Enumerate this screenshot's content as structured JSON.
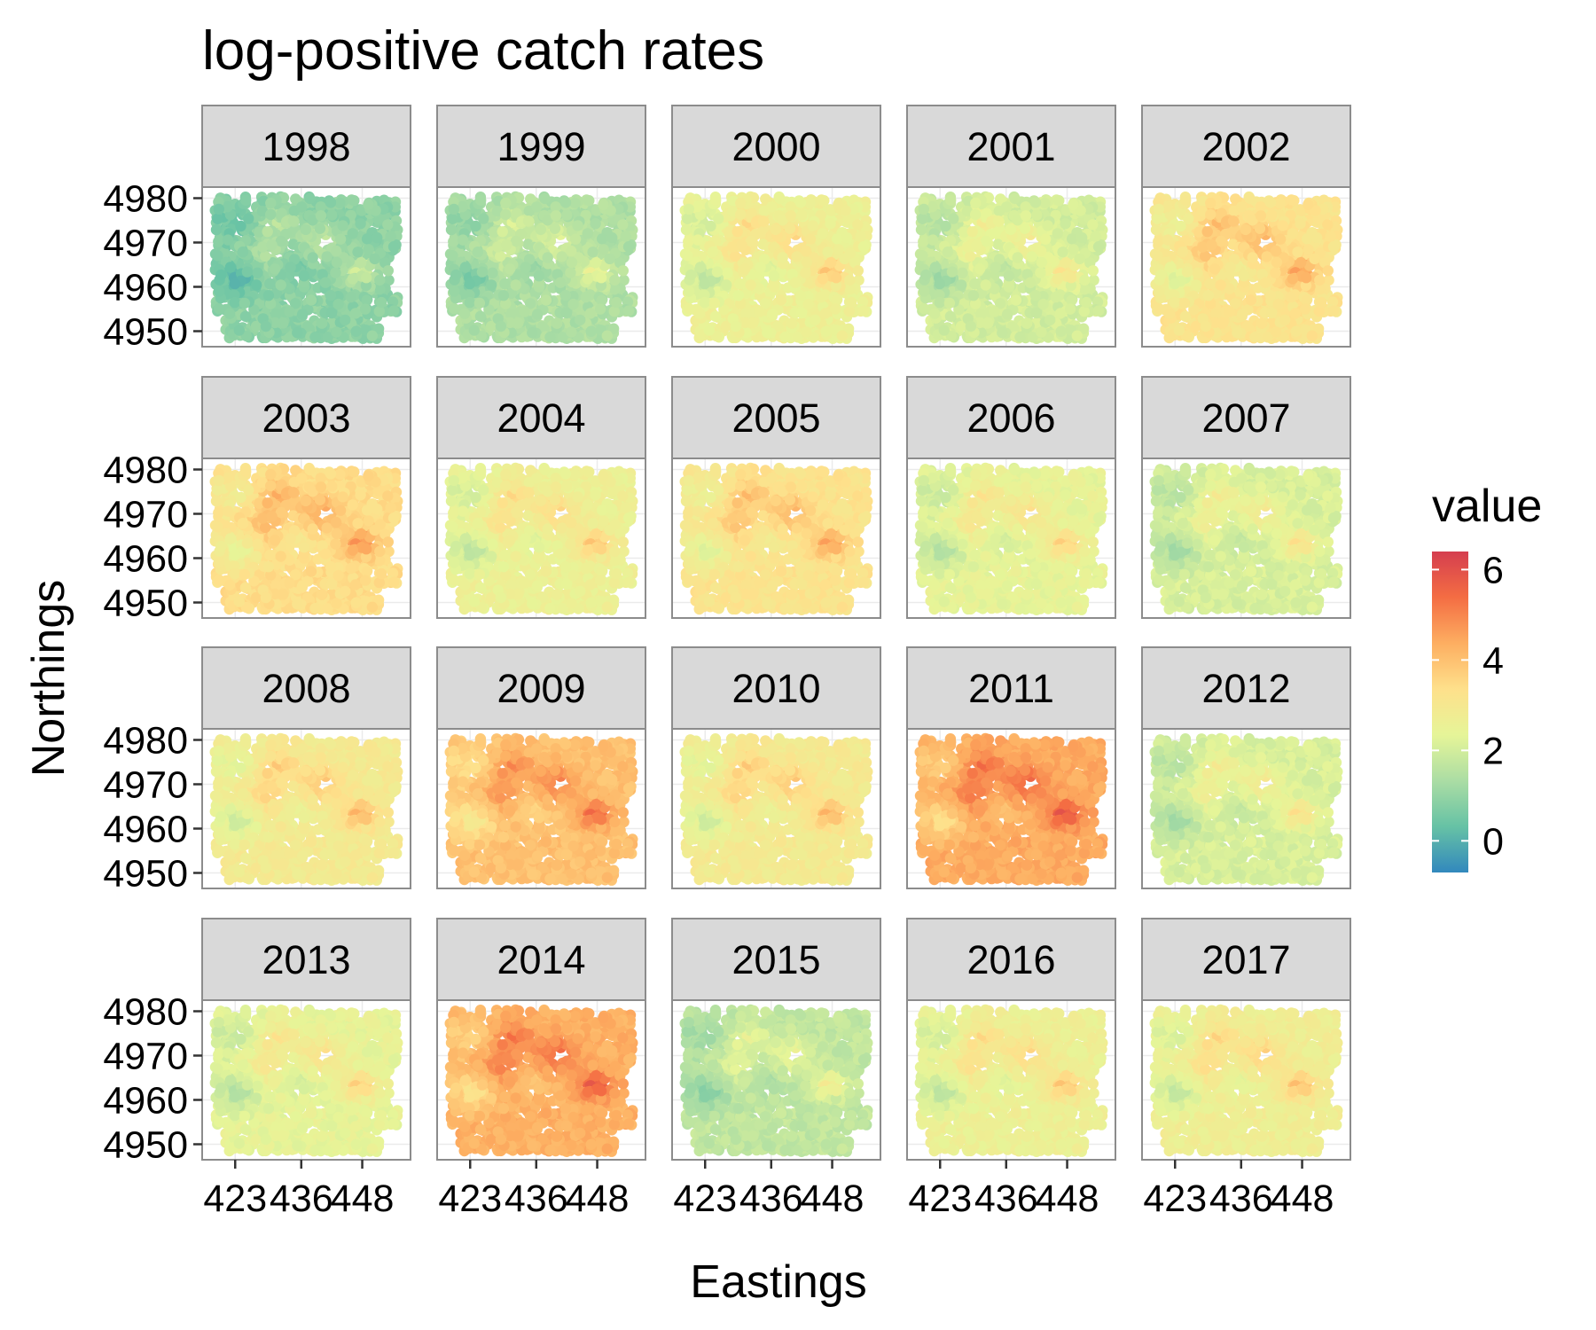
{
  "chart_data": {
    "type": "heatmap",
    "title": "log-positive catch rates",
    "xlabel": "Eastings",
    "ylabel": "Northings",
    "facets": [
      "1998",
      "1999",
      "2000",
      "2001",
      "2002",
      "2003",
      "2004",
      "2005",
      "2006",
      "2007",
      "2008",
      "2009",
      "2010",
      "2011",
      "2012",
      "2013",
      "2014",
      "2015",
      "2016",
      "2017"
    ],
    "facet_mean_value": [
      0.9,
      1.4,
      2.6,
      2.0,
      3.2,
      3.4,
      2.6,
      3.2,
      2.4,
      2.1,
      2.9,
      4.0,
      2.9,
      4.4,
      2.1,
      2.4,
      4.3,
      1.7,
      2.6,
      2.7
    ],
    "x_ticks": [
      "423",
      "436",
      "448"
    ],
    "x_tick_values": [
      423,
      436,
      448
    ],
    "y_ticks": [
      "4950",
      "4960",
      "4970",
      "4980"
    ],
    "y_tick_values": [
      4950,
      4960,
      4970,
      4980
    ],
    "xlim": [
      416.5,
      457.5
    ],
    "ylim": [
      4946.5,
      4982.5
    ],
    "legend": {
      "title": "value",
      "position": "right",
      "ticks": [
        "0",
        "2",
        "4",
        "6"
      ],
      "tick_values": [
        0,
        2,
        4,
        6
      ],
      "range": [
        -0.7,
        6.4
      ]
    },
    "colors": {
      "scale": [
        "#3288bd",
        "#66c2a5",
        "#abdda4",
        "#e6f598",
        "#fee08b",
        "#fdae61",
        "#f46d43",
        "#d53e4f"
      ],
      "strip_fill": "#d9d9d9",
      "panel_border": "#8c8c8c",
      "grid": "#ebebeb"
    },
    "grid": true
  }
}
